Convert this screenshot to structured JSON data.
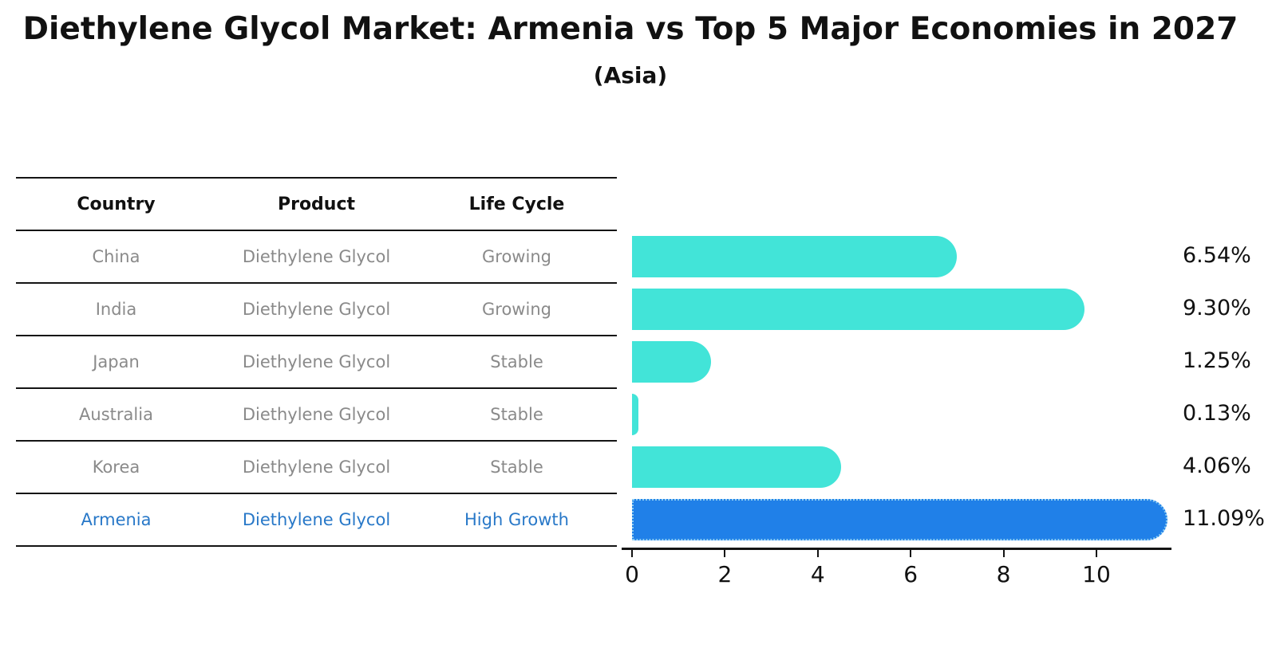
{
  "title": "Diethylene Glycol Market: Armenia vs Top 5 Major Economies in 2027",
  "subtitle": "(Asia)",
  "table": {
    "headers": [
      "Country",
      "Product",
      "Life Cycle"
    ],
    "rows": [
      {
        "country": "China",
        "product": "Diethylene Glycol",
        "life_cycle": "Growing",
        "highlight": false
      },
      {
        "country": "India",
        "product": "Diethylene Glycol",
        "life_cycle": "Growing",
        "highlight": false
      },
      {
        "country": "Japan",
        "product": "Diethylene Glycol",
        "life_cycle": "Stable",
        "highlight": false
      },
      {
        "country": "Australia",
        "product": "Diethylene Glycol",
        "life_cycle": "Stable",
        "highlight": false
      },
      {
        "country": "Korea",
        "product": "Diethylene Glycol",
        "life_cycle": "Stable",
        "highlight": false
      },
      {
        "country": "Armenia",
        "product": "Diethylene Glycol",
        "life_cycle": "High Growth",
        "highlight": true
      }
    ]
  },
  "chart_data": {
    "type": "bar",
    "orientation": "horizontal",
    "categories": [
      "China",
      "India",
      "Japan",
      "Australia",
      "Korea",
      "Armenia"
    ],
    "values": [
      6.54,
      9.3,
      1.25,
      0.13,
      4.06,
      11.09
    ],
    "value_labels": [
      "6.54%",
      "9.30%",
      "1.25%",
      "0.13%",
      "4.06%",
      "11.09%"
    ],
    "x_ticks": [
      0,
      2,
      4,
      6,
      8,
      10
    ],
    "xlim": [
      0,
      11.6
    ],
    "xlabel": "",
    "ylabel": "",
    "grid": false,
    "legend": false,
    "highlight_index": 5
  },
  "colors": {
    "bar": "#42e4d8",
    "highlight_bar": "#2080e8",
    "highlight_bar_border": "#8ecdf2",
    "row_text": "#8a8a8a",
    "highlight_text": "#2878c8",
    "label_text": "#111111"
  }
}
